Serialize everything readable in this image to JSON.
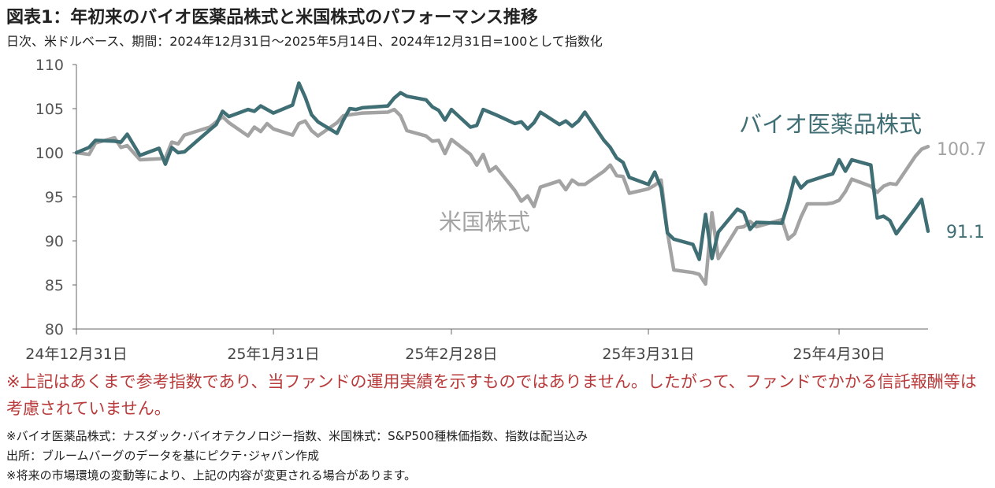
{
  "header": {
    "title": "図表1：年初来のバイオ医薬品株式と米国株式のパフォーマンス推移",
    "subtitle": "日次、米ドルベース、期間：2024年12月31日～2025年5月14日、2024年12月31日=100として指数化"
  },
  "chart_data": {
    "type": "line",
    "x_labels": [
      "24年12月31日",
      "25年1月31日",
      "25年2月28日",
      "25年3月31日",
      "25年4月30日"
    ],
    "xlim": [
      "2024-12-31",
      "2025-05-14"
    ],
    "ylim": [
      80,
      110
    ],
    "y_ticks": [
      "80",
      "85",
      "90",
      "95",
      "100",
      "105",
      "110"
    ],
    "grid": false,
    "series": [
      {
        "name": "バイオ医薬品株式",
        "color": "#3f6f74",
        "end_label": "91.1",
        "x": [
          "2024-12-31",
          "2025-01-02",
          "2025-01-03",
          "2025-01-06",
          "2025-01-07",
          "2025-01-08",
          "2025-01-10",
          "2025-01-13",
          "2025-01-14",
          "2025-01-15",
          "2025-01-16",
          "2025-01-17",
          "2025-01-21",
          "2025-01-22",
          "2025-01-23",
          "2025-01-24",
          "2025-01-27",
          "2025-01-28",
          "2025-01-29",
          "2025-01-30",
          "2025-01-31",
          "2025-02-03",
          "2025-02-04",
          "2025-02-05",
          "2025-02-06",
          "2025-02-07",
          "2025-02-10",
          "2025-02-11",
          "2025-02-12",
          "2025-02-13",
          "2025-02-14",
          "2025-02-18",
          "2025-02-19",
          "2025-02-20",
          "2025-02-21",
          "2025-02-24",
          "2025-02-25",
          "2025-02-26",
          "2025-02-27",
          "2025-02-28",
          "2025-03-03",
          "2025-03-04",
          "2025-03-05",
          "2025-03-06",
          "2025-03-07",
          "2025-03-10",
          "2025-03-11",
          "2025-03-12",
          "2025-03-13",
          "2025-03-14",
          "2025-03-17",
          "2025-03-18",
          "2025-03-19",
          "2025-03-20",
          "2025-03-21",
          "2025-03-24",
          "2025-03-25",
          "2025-03-26",
          "2025-03-27",
          "2025-03-28",
          "2025-03-31",
          "2025-04-01",
          "2025-04-02",
          "2025-04-03",
          "2025-04-04",
          "2025-04-07",
          "2025-04-08",
          "2025-04-09",
          "2025-04-10",
          "2025-04-11",
          "2025-04-14",
          "2025-04-15",
          "2025-04-16",
          "2025-04-17",
          "2025-04-21",
          "2025-04-22",
          "2025-04-23",
          "2025-04-24",
          "2025-04-25",
          "2025-04-28",
          "2025-04-29",
          "2025-04-30",
          "2025-05-01",
          "2025-05-02",
          "2025-05-05",
          "2025-05-06",
          "2025-05-07",
          "2025-05-08",
          "2025-05-09",
          "2025-05-12",
          "2025-05-13",
          "2025-05-14"
        ],
        "values": [
          100,
          100.6,
          101.4,
          101.3,
          101.2,
          102.1,
          99.7,
          100.5,
          98.7,
          100.6,
          100.0,
          100.1,
          102.6,
          103.2,
          104.7,
          104.1,
          104.9,
          104.7,
          105.3,
          104.9,
          104.5,
          105.4,
          107.9,
          106.3,
          104.3,
          103.5,
          102.2,
          103.7,
          105.0,
          104.9,
          105.1,
          105.3,
          106.2,
          106.8,
          106.4,
          106.0,
          105.2,
          104.8,
          103.7,
          104.9,
          102.9,
          103.1,
          104.9,
          104.6,
          104.3,
          103.3,
          103.5,
          102.7,
          103.4,
          104.6,
          103.2,
          103.6,
          103.0,
          103.6,
          104.6,
          101.4,
          100.6,
          99.4,
          98.9,
          97.2,
          96.4,
          97.8,
          96.0,
          90.9,
          90.2,
          89.6,
          87.9,
          93.0,
          88.0,
          91.0,
          93.6,
          93.2,
          91.3,
          92.1,
          92.0,
          94.3,
          97.2,
          96.0,
          96.7,
          97.4,
          97.6,
          99.2,
          97.9,
          99.2,
          98.6,
          92.6,
          92.8,
          92.3,
          90.8,
          93.7,
          94.7,
          91.1
        ]
      },
      {
        "name": "米国株式",
        "color": "#a3a3a3",
        "end_label": "100.7",
        "x": [
          "2024-12-31",
          "2025-01-02",
          "2025-01-03",
          "2025-01-06",
          "2025-01-07",
          "2025-01-08",
          "2025-01-10",
          "2025-01-13",
          "2025-01-14",
          "2025-01-15",
          "2025-01-16",
          "2025-01-17",
          "2025-01-21",
          "2025-01-22",
          "2025-01-23",
          "2025-01-24",
          "2025-01-27",
          "2025-01-28",
          "2025-01-29",
          "2025-01-30",
          "2025-01-31",
          "2025-02-03",
          "2025-02-04",
          "2025-02-05",
          "2025-02-06",
          "2025-02-07",
          "2025-02-10",
          "2025-02-11",
          "2025-02-12",
          "2025-02-13",
          "2025-02-14",
          "2025-02-18",
          "2025-02-19",
          "2025-02-20",
          "2025-02-21",
          "2025-02-24",
          "2025-02-25",
          "2025-02-26",
          "2025-02-27",
          "2025-02-28",
          "2025-03-03",
          "2025-03-04",
          "2025-03-05",
          "2025-03-06",
          "2025-03-07",
          "2025-03-10",
          "2025-03-11",
          "2025-03-12",
          "2025-03-13",
          "2025-03-14",
          "2025-03-17",
          "2025-03-18",
          "2025-03-19",
          "2025-03-20",
          "2025-03-21",
          "2025-03-24",
          "2025-03-25",
          "2025-03-26",
          "2025-03-27",
          "2025-03-28",
          "2025-03-31",
          "2025-04-01",
          "2025-04-02",
          "2025-04-03",
          "2025-04-04",
          "2025-04-07",
          "2025-04-08",
          "2025-04-09",
          "2025-04-10",
          "2025-04-11",
          "2025-04-14",
          "2025-04-15",
          "2025-04-16",
          "2025-04-17",
          "2025-04-21",
          "2025-04-22",
          "2025-04-23",
          "2025-04-24",
          "2025-04-25",
          "2025-04-28",
          "2025-04-29",
          "2025-04-30",
          "2025-05-01",
          "2025-05-02",
          "2025-05-05",
          "2025-05-06",
          "2025-05-07",
          "2025-05-08",
          "2025-05-09",
          "2025-05-12",
          "2025-05-13",
          "2025-05-14"
        ],
        "values": [
          100,
          99.8,
          101.1,
          101.7,
          100.6,
          100.8,
          99.2,
          99.3,
          99.4,
          101.2,
          101.0,
          102.0,
          102.9,
          103.5,
          104.1,
          103.4,
          101.9,
          102.9,
          102.4,
          103.3,
          102.7,
          102.0,
          103.3,
          103.6,
          102.5,
          101.9,
          103.4,
          104.2,
          104.3,
          104.4,
          104.5,
          104.6,
          104.9,
          104.2,
          102.5,
          101.9,
          101.3,
          101.4,
          99.9,
          101.5,
          99.8,
          98.6,
          99.8,
          97.9,
          98.4,
          95.7,
          94.5,
          95.1,
          93.9,
          96.1,
          96.8,
          95.8,
          96.9,
          96.4,
          96.4,
          97.9,
          98.6,
          97.4,
          97.3,
          95.4,
          95.9,
          96.3,
          96.9,
          91.0,
          86.7,
          86.4,
          86.2,
          85.1,
          93.2,
          88.0,
          91.5,
          91.6,
          92.2,
          91.6,
          92.4,
          90.2,
          90.8,
          92.7,
          94.2,
          94.2,
          94.3,
          94.6,
          95.6,
          97.0,
          96.2,
          95.5,
          96.2,
          96.5,
          96.4,
          99.6,
          100.4,
          100.7
        ]
      }
    ]
  },
  "notice": "※上記はあくまで参考指数であり、当ファンドの運用実績を示すものではありません。したがって、ファンドでかかる信託報酬等は考慮されていません。",
  "footnotes": [
    "※バイオ医薬品株式：ナスダック･バイオテクノロジー指数、米国株式：S&P500種株価指数、指数は配当込み",
    "出所：ブルームバーグのデータを基にピクテ･ジャパン作成",
    "※将来の市場環境の変動等により、上記の内容が変更される場合があります。"
  ]
}
